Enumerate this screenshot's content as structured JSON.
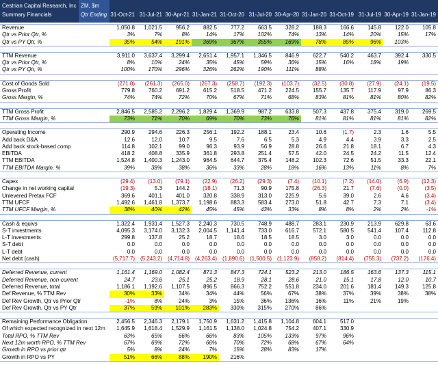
{
  "header": {
    "company": "Cestrian Capital Research, Inc",
    "subtitle": "Summary Financials",
    "ticker": "ZM, $m",
    "period_label": "Qtr Ending",
    "columns": [
      "31-Oct-21",
      "31-Jul-21",
      "30-Apr-21",
      "31-Jan-21",
      "31-Oct-20",
      "31-Jul-20",
      "30-Apr-20",
      "31-Jan-20",
      "31-Oct-19",
      "31-Jul-19",
      "30-Apr-19",
      "31-Jan-19"
    ]
  },
  "sections": [
    [
      {
        "label": "Revenue",
        "values": [
          "1,050.8",
          "1,021.5",
          "956.2",
          "882.5",
          "777.2",
          "663.5",
          "328.2",
          "188.3",
          "166.6",
          "145.8",
          "122.0",
          "105.8"
        ]
      },
      {
        "label": "Qtr vs Prior Qtr, %",
        "italic": true,
        "values": [
          "3%",
          "7%",
          "8%",
          "14%",
          "17%",
          "102%",
          "74%",
          "13%",
          "14%",
          "20%",
          "15%",
          "17%"
        ]
      },
      {
        "label": "Qtr vs PY Qtr, %",
        "italic": true,
        "values": [
          "35%",
          "54%",
          "191%",
          "369%",
          "367%",
          "355%",
          "169%",
          "78%",
          "85%",
          "96%",
          "103%",
          null
        ],
        "cell_colors": [
          "#ffff00",
          "#ffff00",
          "#ffff00",
          "#92d050",
          "#92d050",
          "#92d050",
          "#92d050",
          "#ffff00",
          "#ffff00",
          "#ffff00",
          null,
          null
        ]
      }
    ],
    [
      {
        "label": "TTM Revenue",
        "values": [
          "3,911.0",
          "3,637.4",
          "3,299.4",
          "2,651.4",
          "1,957.1",
          "1,346.5",
          "846.9",
          "622.7",
          "540.2",
          "463.7",
          "392.4",
          "330.5"
        ]
      },
      {
        "label": "Qtr vs Prior Qtr, %",
        "italic": true,
        "values": [
          "8%",
          "10%",
          "24%",
          "35%",
          "45%",
          "59%",
          "36%",
          "15%",
          "16%",
          "18%",
          "19%",
          null
        ]
      },
      {
        "label": "Qtr vs PY Qtr, %",
        "italic": true,
        "values": [
          "100%",
          "170%",
          "296%",
          "326%",
          "262%",
          "190%",
          "111%",
          "88%",
          null,
          null,
          null,
          null
        ]
      }
    ],
    [
      {
        "label": "Cost of Goods Sold",
        "values": [
          "(271.0)",
          "(261.3)",
          "(265.0)",
          "(267.3)",
          "(258.7)",
          "(192.3)",
          "(103.7)",
          "(32.5)",
          "(30.8)",
          "(27.9)",
          "(24.1)",
          "(19.5)"
        ]
      },
      {
        "label": "Gross Profit",
        "values": [
          "779.8",
          "760.2",
          "691.2",
          "615.2",
          "518.5",
          "471.2",
          "224.5",
          "155.7",
          "135.7",
          "117.9",
          "97.9",
          "86.3"
        ]
      },
      {
        "label": "Gross Margin, %",
        "italic": true,
        "values": [
          "74%",
          "74%",
          "72%",
          "70%",
          "67%",
          "71%",
          "68%",
          "83%",
          "81%",
          "81%",
          "80%",
          "82%"
        ]
      }
    ],
    [
      {
        "label": "TTM Gross Profit",
        "values": [
          "2,846.5",
          "2,585.2",
          "2,296.2",
          "1,829.4",
          "1,369.9",
          "987.2",
          "633.8",
          "507.3",
          "437.8",
          "375.4",
          "319.0",
          "269.5"
        ]
      },
      {
        "label": "TTM Gross Margin, %",
        "italic": true,
        "values": [
          "73%",
          "71%",
          "70%",
          "69%",
          "70%",
          "73%",
          "76%",
          "81%",
          "81%",
          "81%",
          "81%",
          "82%"
        ],
        "cell_colors": [
          "#92d050",
          "#92d050",
          "#92d050",
          "#92d050",
          "#92d050",
          "#92d050",
          "#92d050",
          null,
          null,
          null,
          null,
          null
        ]
      }
    ],
    [
      {
        "label": "Operating Income",
        "values": [
          "290.9",
          "294.6",
          "226.3",
          "256.1",
          "192.2",
          "188.1",
          "23.4",
          "10.6",
          "(1.7)",
          "2.3",
          "1.6",
          "5.5"
        ]
      },
      {
        "label": "Add back D&A",
        "values": [
          "12.6",
          "12.0",
          "10.7",
          "9.5",
          "7.6",
          "6.5",
          "5.3",
          "4.9",
          "4.4",
          "3.9",
          "3.3",
          "2.5"
        ]
      },
      {
        "label": "Add back stock-based comp",
        "values": [
          "114.8",
          "102.1",
          "99.0",
          "96.3",
          "93.9",
          "56.9",
          "28.8",
          "26.6",
          "21.8",
          "18.1",
          "6.7",
          "4.3"
        ]
      },
      {
        "label": "EBITDA",
        "values": [
          "418.2",
          "408.8",
          "335.9",
          "361.8",
          "293.8",
          "251.4",
          "57.5",
          "42.0",
          "24.5",
          "24.2",
          "11.5",
          "12.4"
        ]
      },
      {
        "label": "TTM EBITDA",
        "values": [
          "1,524.8",
          "1,400.3",
          "1,243.0",
          "964.5",
          "644.7",
          "375.4",
          "148.2",
          "102.3",
          "72.6",
          "51.5",
          "33.3",
          "22.1"
        ]
      },
      {
        "label": "TTM EBITDA Margin, %",
        "italic": true,
        "values": [
          "39%",
          "38%",
          "38%",
          "36%",
          "33%",
          "28%",
          "18%",
          "16%",
          "13%",
          "11%",
          "8%",
          "7%"
        ]
      }
    ],
    [
      {
        "label": "Capex",
        "values": [
          "(29.4)",
          "(13.0)",
          "(79.1)",
          "(22.9)",
          "(26.2)",
          "(29.3)",
          "(7.4)",
          "(10.1)",
          "(7.2)",
          "(14.0)",
          "(6.9)",
          "(12.3)"
        ]
      },
      {
        "label": "Change in net working capital",
        "values": [
          "(19.3)",
          "5.3",
          "144.2",
          "(18.1)",
          "71.3",
          "90.9",
          "175.8",
          "(26.3)",
          "21.7",
          "(7.6)",
          "(0.0)",
          "(3.5)"
        ]
      },
      {
        "label": "Unlevered Pretax FCF",
        "values": [
          "369.6",
          "401.1",
          "401.0",
          "320.8",
          "338.9",
          "313.0",
          "225.9",
          "5.6",
          "39.0",
          "2.6",
          "4.6",
          "(3.4)"
        ]
      },
      {
        "label": "TTM UFCF",
        "values": [
          "1,492.6",
          "1,461.8",
          "1,373.7",
          "1,198.6",
          "883.3",
          "583.4",
          "273.0",
          "51.8",
          "42.7",
          "7.3",
          "7.1",
          "(3.4)"
        ]
      },
      {
        "label": "TTM UFCF Margin, %",
        "italic": true,
        "values": [
          "38%",
          "40%",
          "42%",
          "45%",
          "45%",
          "43%",
          "33%",
          "8%",
          "8%",
          "2%",
          "2%",
          "-1%"
        ],
        "cell_colors": [
          "#ffff00",
          "#ffff00",
          "#ffff00",
          null,
          null,
          null,
          null,
          null,
          null,
          null,
          null,
          null
        ]
      }
    ],
    [
      {
        "label": "Cash & equivs",
        "values": [
          "1,322.4",
          "1,931.4",
          "1,527.3",
          "2,240.3",
          "730.5",
          "748.9",
          "488.7",
          "283.1",
          "230.9",
          "213.9",
          "629.8",
          "63.6"
        ]
      },
      {
        "label": "S-T investments",
        "values": [
          "4,095.3",
          "3,174.0",
          "3,132.3",
          "2,004.5",
          "1,141.4",
          "733.0",
          "616.7",
          "572.1",
          "580.5",
          "541.4",
          "107.4",
          "112.8"
        ]
      },
      {
        "label": "L-T investments",
        "values": [
          "299.8",
          "137.8",
          "25.2",
          "18.7",
          "18.6",
          "18.5",
          "18.5",
          "3.0",
          "3.0",
          "0.0",
          "0.0",
          "0.0"
        ]
      },
      {
        "label": "S-T debt",
        "values": [
          "0.0",
          "0.0",
          "0.0",
          "0.0",
          "0.0",
          "0.0",
          "0.0",
          "0.0",
          "0.0",
          "0.0",
          "0.0",
          "0.0"
        ]
      },
      {
        "label": "L-T debt",
        "values": [
          "0.0",
          "0.0",
          "0.0",
          "0.0",
          "0.0",
          "0.0",
          "0.0",
          "0.0",
          "0.0",
          "0.0",
          "0.0",
          "0.0"
        ]
      },
      {
        "label": "Net debt (cash)",
        "values": [
          "(5,717.7)",
          "(5,243.2)",
          "(4,714.8)",
          "(4,263.4)",
          "(1,890.6)",
          "(1,500.5)",
          "(1,123.9)",
          "(858.2)",
          "(814.4)",
          "(755.3)",
          "(737.2)",
          "(176.4)"
        ]
      }
    ],
    [
      {
        "label": "Deferred Revenue, current",
        "italic": true,
        "values": [
          "1,161.4",
          "1,169.0",
          "1,082.4",
          "871.3",
          "847.3",
          "724.1",
          "523.2",
          "213.0",
          "186.5",
          "163.6",
          "137.3",
          "115.1"
        ]
      },
      {
        "label": "Deferred Revenue, non-current",
        "italic": true,
        "values": [
          "24.7",
          "23.6",
          "25.1",
          "25.2",
          "18.9",
          "28.1",
          "28.6",
          "21.0",
          "15.1",
          "17.8",
          "12.0",
          "10.7"
        ]
      },
      {
        "label": "Deferred Revenue, total",
        "values": [
          "1,186.1",
          "1,192.6",
          "1,107.5",
          "896.5",
          "866.3",
          "752.2",
          "551.8",
          "234.0",
          "201.6",
          "181.4",
          "149.3",
          "125.8"
        ]
      },
      {
        "label": "Def Revenue, % TTM Rev",
        "values": [
          "30%",
          "33%",
          "34%",
          "34%",
          "44%",
          "56%",
          "67%",
          "38%",
          "37%",
          "39%",
          "38%",
          "38%"
        ],
        "cell_colors": [
          "#ffff00",
          "#ffff00",
          null,
          null,
          null,
          null,
          null,
          null,
          null,
          null,
          null,
          null
        ]
      },
      {
        "label": "Def Rev Growth, Qtr vs Prior Qtr",
        "values": [
          "-1%",
          "8%",
          "24%",
          "3%",
          "15%",
          "36%",
          "136%",
          "16%",
          "11%",
          "21%",
          "19%",
          null
        ]
      },
      {
        "label": "Def Rev Growth, Qtr vs PY Qtr",
        "values": [
          "37%",
          "59%",
          "101%",
          "283%",
          "330%",
          "315%",
          "270%",
          "86%",
          null,
          null,
          null,
          null
        ],
        "cell_colors": [
          "#ffff00",
          "#ffff00",
          "#ffff00",
          "#ffff00",
          null,
          null,
          null,
          null,
          null,
          null,
          null,
          null
        ]
      }
    ],
    [
      {
        "label": "Remaining Performance Obligation",
        "values": [
          "2,456.5",
          "2,346.3",
          "2,179.1",
          "1,750.9",
          "1,631.2",
          "1,415.8",
          "1,104.8",
          "604.1",
          "517.0",
          null,
          null,
          null
        ]
      },
      {
        "label": "Of which expected recognized in next 12m",
        "values": [
          "1,645.9",
          "1,618.4",
          "1,529.9",
          "1,161.5",
          "1,138.0",
          "1,024.8",
          "754.2",
          "407.1",
          "330.9",
          null,
          null,
          null
        ]
      },
      {
        "label": "Total RPO, % TTM Rev",
        "italic": true,
        "values": [
          "63%",
          "65%",
          "66%",
          "66%",
          "83%",
          "105%",
          "133%",
          "97%",
          "96%",
          null,
          null,
          null
        ]
      },
      {
        "label": "Next 12m worth RPO, % TTM Rev",
        "italic": true,
        "values": [
          "67%",
          "69%",
          "72%",
          "66%",
          "70%",
          "72%",
          "68%",
          "67%",
          "64%",
          null,
          null,
          null
        ]
      },
      {
        "label": "Growth in RPO vs prior qtr",
        "italic": true,
        "values": [
          "5%",
          "8%",
          "24%",
          "7%",
          "15%",
          "28%",
          "83%",
          "17%",
          null,
          null,
          null,
          null
        ]
      },
      {
        "label": "Growth in RPO vs PY",
        "values": [
          "51%",
          "66%",
          "88%",
          "190%",
          "216%",
          null,
          null,
          null,
          null,
          null,
          null,
          null
        ],
        "cell_colors": [
          "#ffff00",
          "#ffff00",
          "#ffff00",
          "#ffff00",
          null,
          null,
          null,
          null,
          null,
          null,
          null,
          null
        ]
      }
    ]
  ]
}
